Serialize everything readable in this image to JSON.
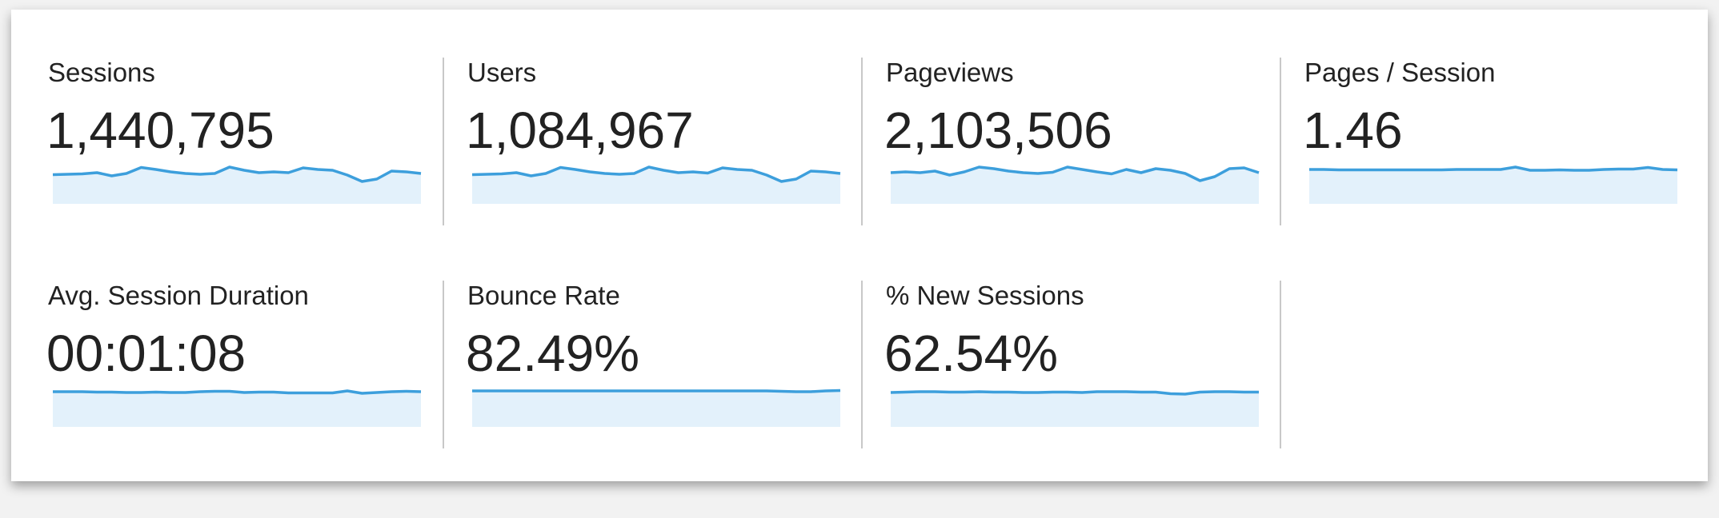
{
  "metrics": [
    {
      "label": "Sessions",
      "value": "1,440,795",
      "sparkline": [
        73,
        74,
        75,
        78,
        70,
        76,
        91,
        86,
        80,
        76,
        74,
        76,
        92,
        84,
        78,
        80,
        78,
        90,
        86,
        84,
        72,
        56,
        62,
        82,
        80,
        76
      ]
    },
    {
      "label": "Users",
      "value": "1,084,967",
      "sparkline": [
        73,
        74,
        75,
        78,
        70,
        76,
        91,
        86,
        80,
        76,
        74,
        76,
        92,
        84,
        78,
        80,
        77,
        90,
        86,
        84,
        72,
        56,
        62,
        82,
        80,
        76
      ]
    },
    {
      "label": "Pageviews",
      "value": "2,103,506",
      "sparkline": [
        78,
        80,
        78,
        82,
        72,
        80,
        92,
        88,
        82,
        78,
        76,
        79,
        92,
        86,
        80,
        75,
        86,
        78,
        88,
        84,
        76,
        58,
        68,
        88,
        90,
        78
      ]
    },
    {
      "label": "Pages / Session",
      "value": "1.46",
      "sparkline": [
        86,
        86,
        85,
        85,
        85,
        85,
        85,
        85,
        85,
        85,
        86,
        86,
        86,
        86,
        92,
        84,
        84,
        85,
        84,
        84,
        86,
        87,
        87,
        91,
        86,
        85
      ]
    },
    {
      "label": "Avg. Session Duration",
      "value": "00:01:08",
      "sparkline": [
        88,
        88,
        88,
        87,
        87,
        86,
        86,
        87,
        86,
        86,
        88,
        89,
        89,
        86,
        87,
        87,
        85,
        85,
        85,
        85,
        90,
        84,
        86,
        88,
        89,
        88
      ]
    },
    {
      "label": "Bounce Rate",
      "value": "82.49%",
      "sparkline": [
        90,
        90,
        90,
        90,
        90,
        90,
        90,
        90,
        90,
        90,
        90,
        90,
        90,
        90,
        90,
        90,
        90,
        90,
        90,
        90,
        90,
        89,
        88,
        88,
        90,
        91
      ]
    },
    {
      "label": "% New Sessions",
      "value": "62.54%",
      "sparkline": [
        86,
        87,
        88,
        88,
        87,
        87,
        88,
        87,
        87,
        86,
        86,
        87,
        87,
        86,
        88,
        88,
        88,
        87,
        87,
        83,
        82,
        87,
        88,
        88,
        87,
        87
      ]
    }
  ]
}
